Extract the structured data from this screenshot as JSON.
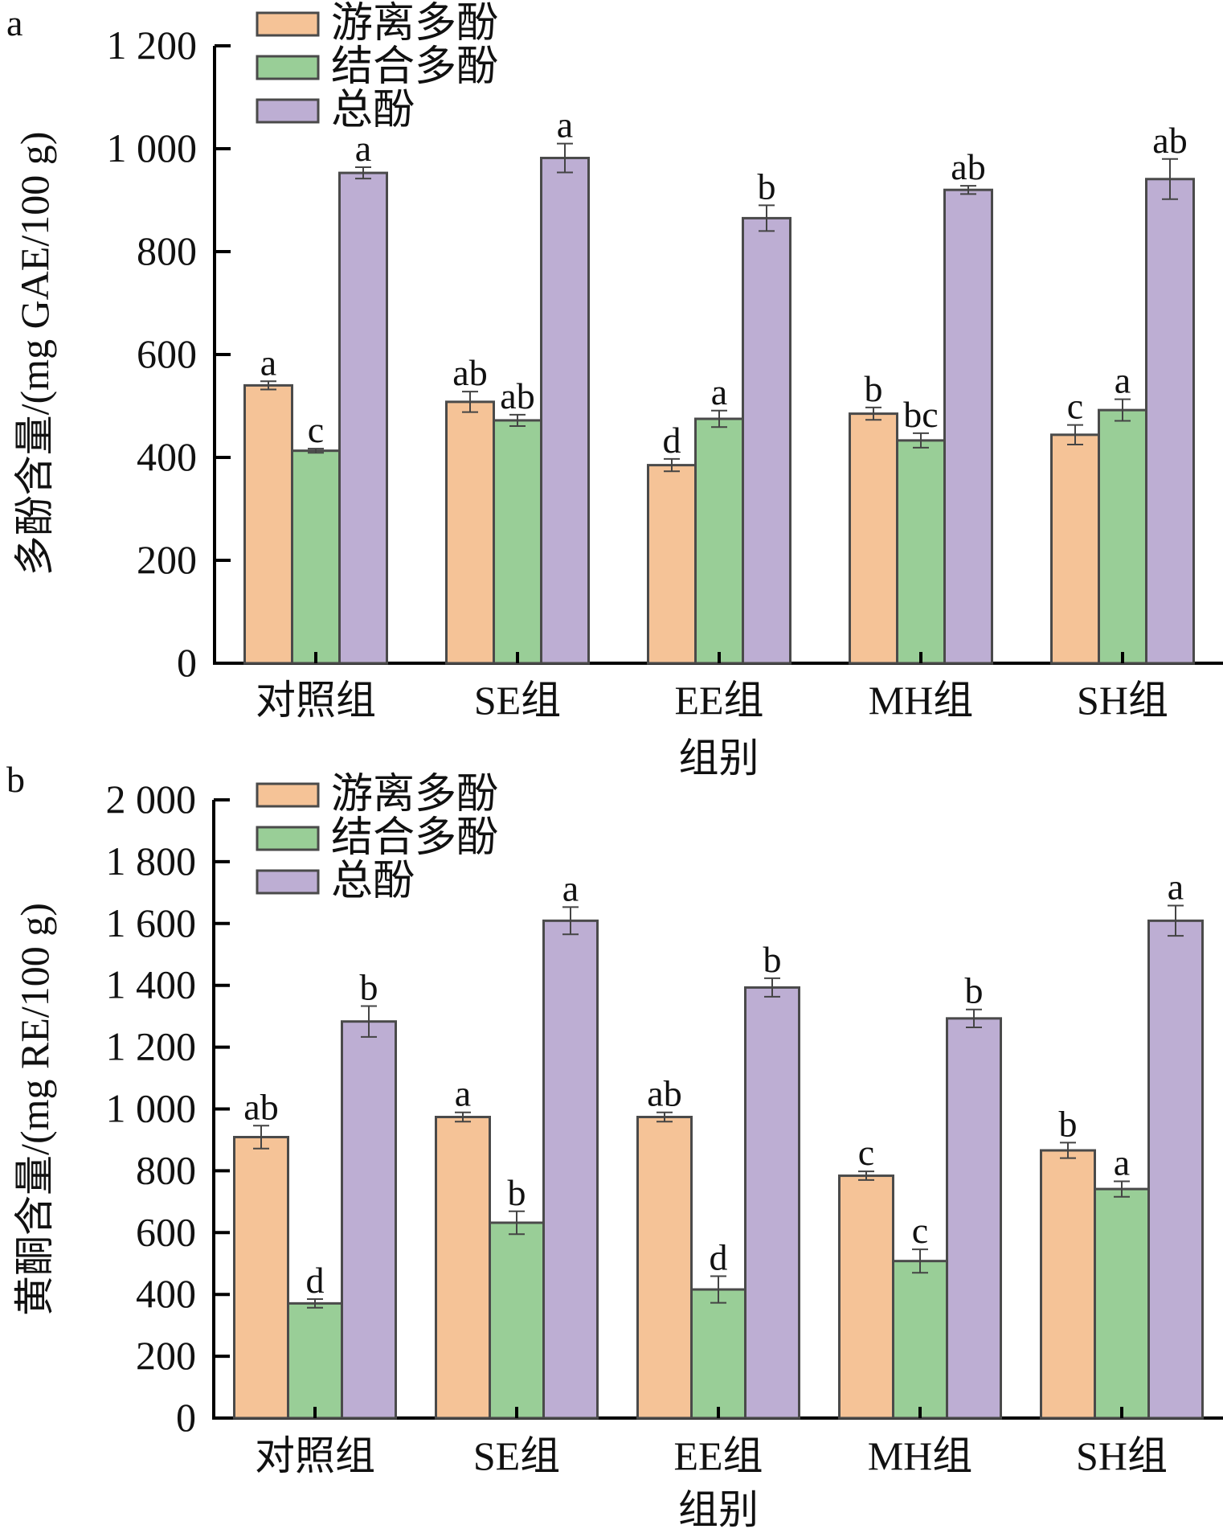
{
  "chart_data": [
    {
      "panel": "a",
      "type": "bar",
      "title": "",
      "xlabel": "组别",
      "ylabel": "多酚含量/(mg GAE/100 g)",
      "ylim": [
        0,
        1200
      ],
      "yticks": [
        0,
        200,
        400,
        600,
        800,
        1000,
        1200
      ],
      "ytick_labels": [
        "0",
        "200",
        "400",
        "600",
        "800",
        "1 000",
        "1 200"
      ],
      "categories": [
        "对照组",
        "SE组",
        "EE组",
        "MH组",
        "SH组"
      ],
      "legend_position": "top-left",
      "series": [
        {
          "name": "游离多酚",
          "color": "#F5C397",
          "values": [
            540,
            508,
            385,
            485,
            444
          ],
          "errors": [
            8,
            20,
            12,
            12,
            19
          ],
          "significance": [
            "a",
            "ab",
            "d",
            "b",
            "c"
          ]
        },
        {
          "name": "结合多酚",
          "color": "#99CE97",
          "values": [
            413,
            472,
            475,
            433,
            492
          ],
          "errors": [
            4,
            11,
            16,
            14,
            21
          ],
          "significance": [
            "c",
            "ab",
            "a",
            "bc",
            "a"
          ]
        },
        {
          "name": "总酚",
          "color": "#BDAED3",
          "values": [
            953,
            982,
            865,
            920,
            941
          ],
          "errors": [
            11,
            28,
            25,
            8,
            39
          ],
          "significance": [
            "a",
            "a",
            "b",
            "ab",
            "ab"
          ]
        }
      ]
    },
    {
      "panel": "b",
      "type": "bar",
      "title": "",
      "xlabel": "组别",
      "ylabel": "黄酮含量/(mg RE/100 g)",
      "ylim": [
        0,
        2000
      ],
      "yticks": [
        0,
        200,
        400,
        600,
        800,
        1000,
        1200,
        1400,
        1600,
        1800,
        2000
      ],
      "ytick_labels": [
        "0",
        "200",
        "400",
        "600",
        "800",
        "1 000",
        "1 200",
        "1 400",
        "1 600",
        "1 800",
        "2 000"
      ],
      "categories": [
        "对照组",
        "SE组",
        "EE组",
        "MH组",
        "SH组"
      ],
      "legend_position": "top-left",
      "series": [
        {
          "name": "游离多酚",
          "color": "#F5C397",
          "values": [
            909,
            974,
            974,
            784,
            866
          ],
          "errors": [
            37,
            15,
            15,
            14,
            25
          ],
          "significance": [
            "ab",
            "a",
            "ab",
            "c",
            "b"
          ]
        },
        {
          "name": "结合多酚",
          "color": "#99CE97",
          "values": [
            371,
            632,
            416,
            508,
            741
          ],
          "errors": [
            14,
            37,
            43,
            38,
            25
          ],
          "significance": [
            "d",
            "b",
            "d",
            "c",
            "a"
          ]
        },
        {
          "name": "总酚",
          "color": "#BDAED3",
          "values": [
            1283,
            1609,
            1393,
            1293,
            1609
          ],
          "errors": [
            50,
            44,
            30,
            29,
            49
          ],
          "significance": [
            "b",
            "a",
            "b",
            "b",
            "a"
          ]
        }
      ]
    }
  ]
}
